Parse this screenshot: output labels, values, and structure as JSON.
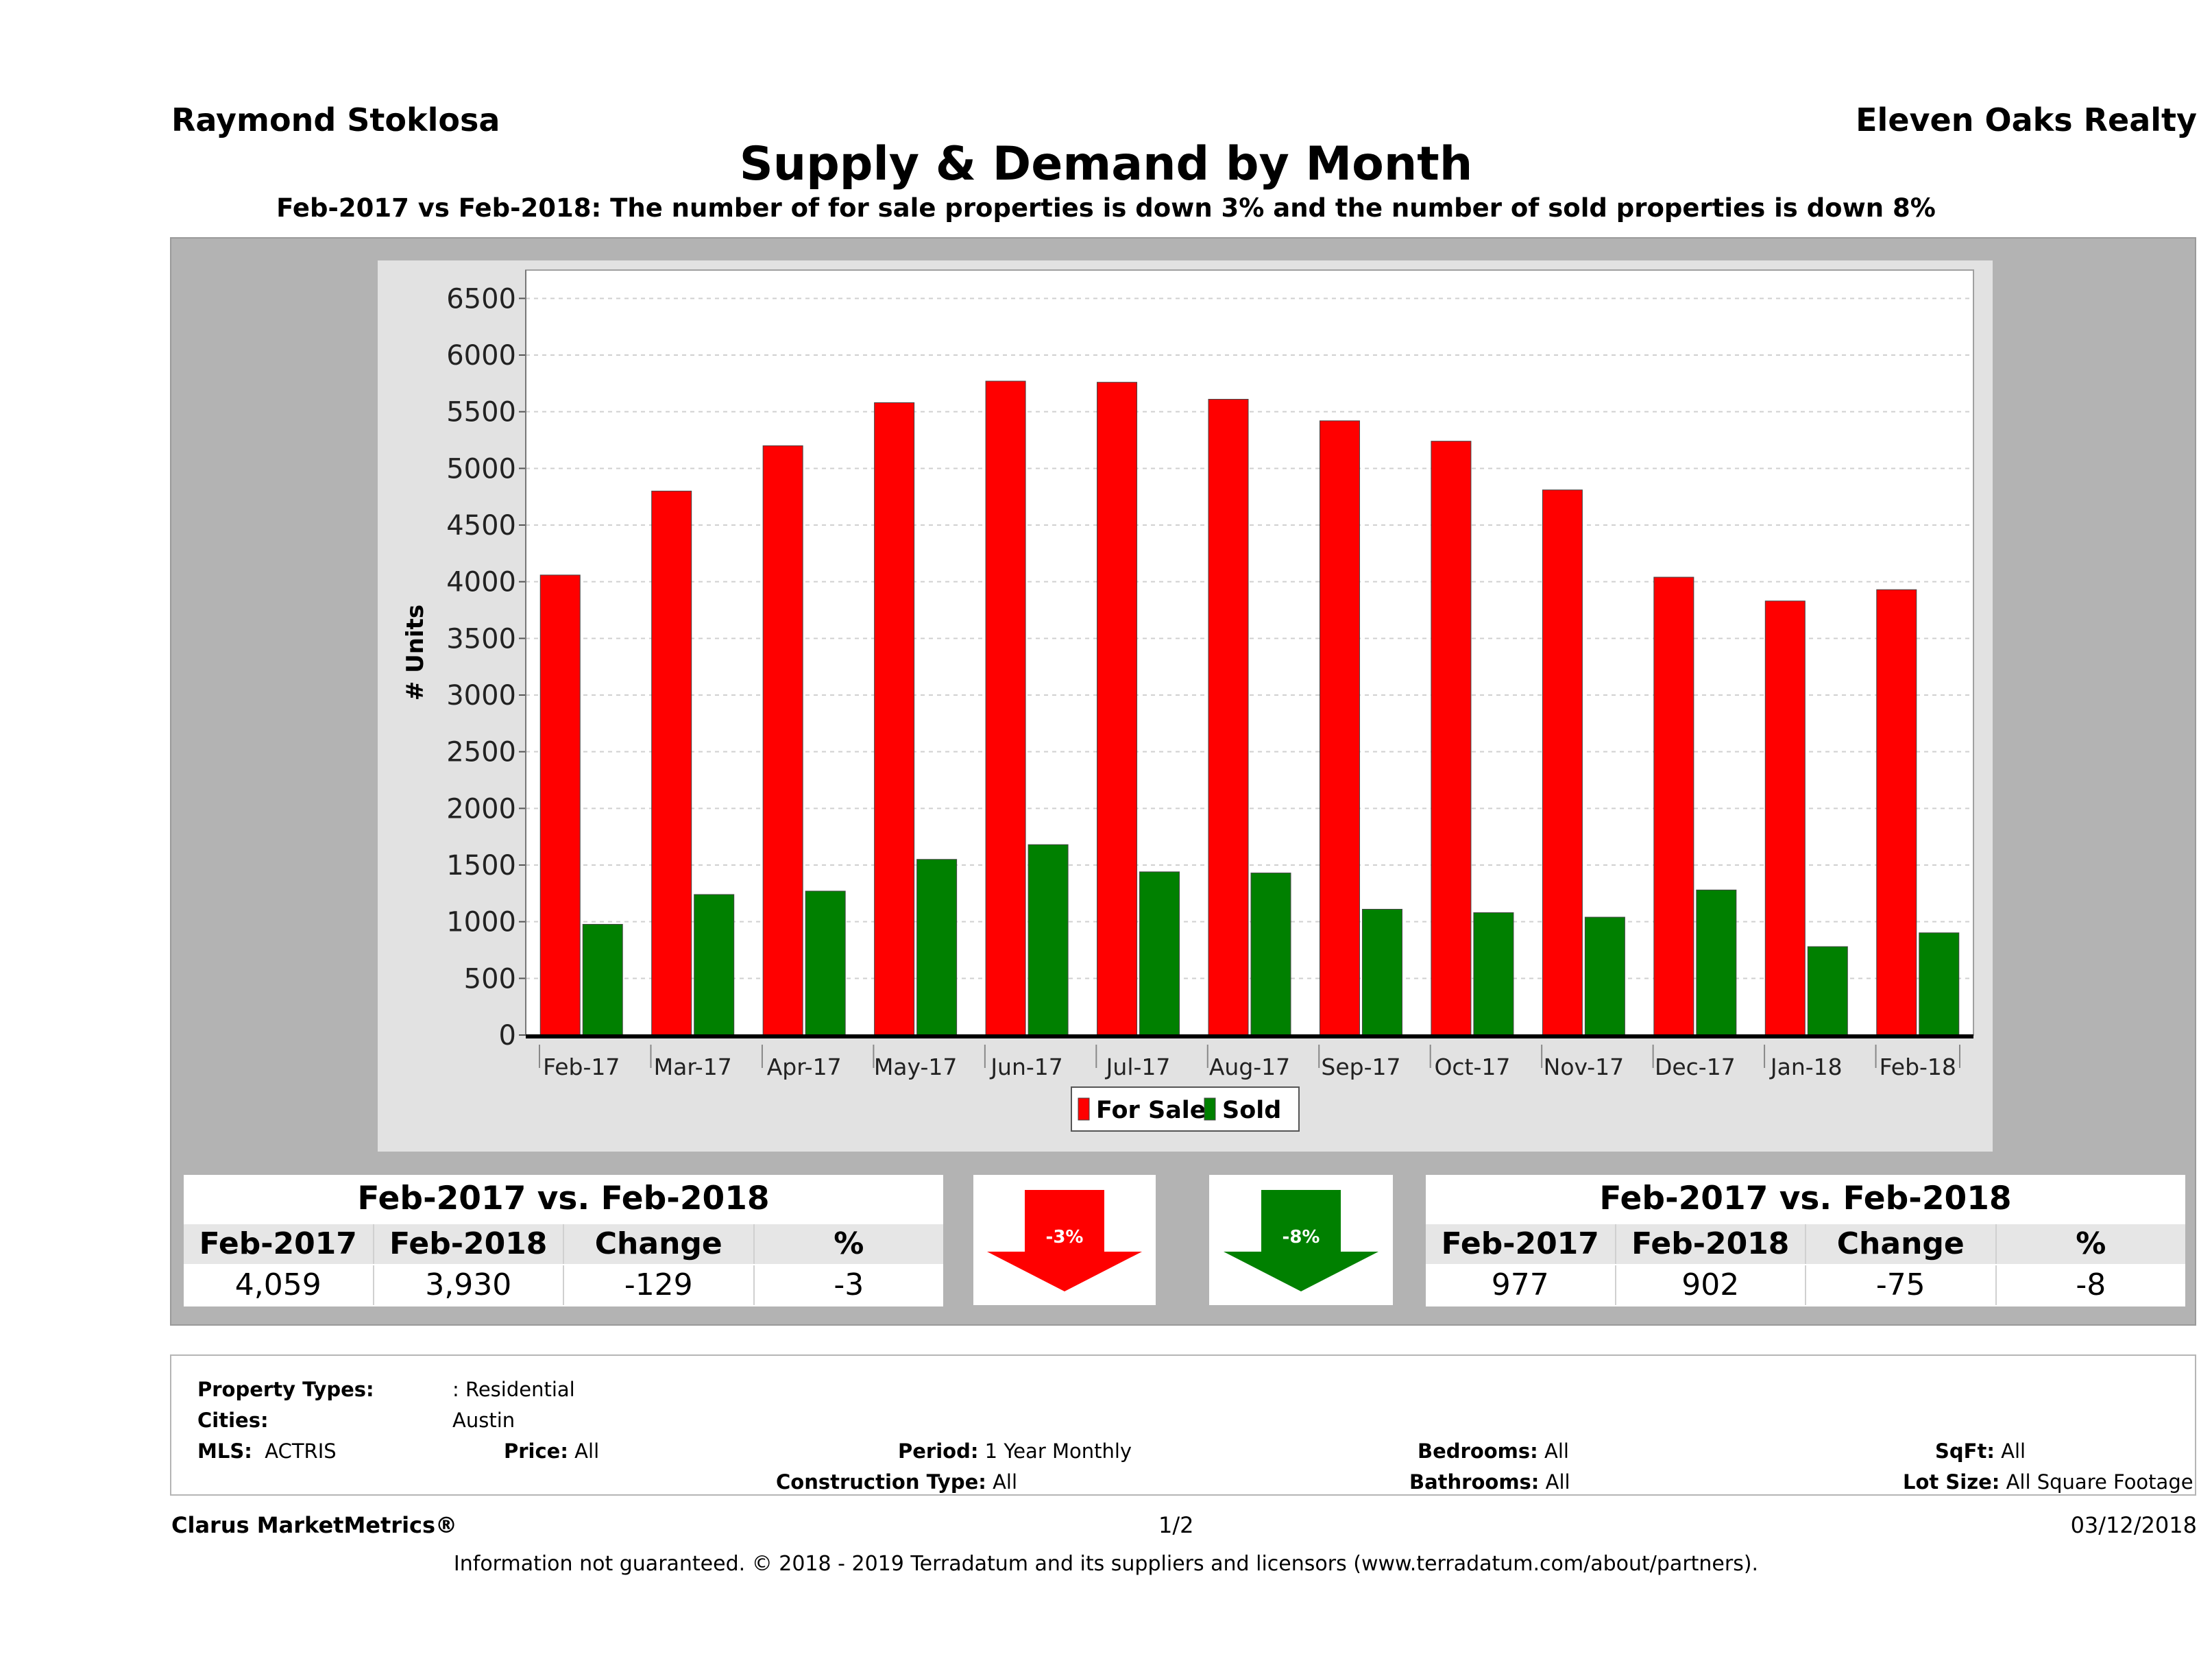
{
  "header": {
    "agent": "Raymond Stoklosa",
    "company": "Eleven Oaks Realty",
    "title": "Supply & Demand by Month",
    "subtitle": "Feb-2017 vs Feb-2018: The number of for sale properties is down 3% and the number of sold properties is down 8%"
  },
  "chart_data": {
    "type": "bar",
    "title": "",
    "xlabel": "",
    "ylabel": "# Units",
    "ylim": [
      0,
      6500
    ],
    "yticks": [
      0,
      500,
      1000,
      1500,
      2000,
      2500,
      3000,
      3500,
      4000,
      4500,
      5000,
      5500,
      6000,
      6500
    ],
    "grid": true,
    "legend_position": "bottom",
    "categories": [
      "Feb-17",
      "Mar-17",
      "Apr-17",
      "May-17",
      "Jun-17",
      "Jul-17",
      "Aug-17",
      "Sep-17",
      "Oct-17",
      "Nov-17",
      "Dec-17",
      "Jan-18",
      "Feb-18"
    ],
    "series": [
      {
        "name": "For Sale",
        "color": "#ff0000",
        "values": [
          4059,
          4800,
          5200,
          5580,
          5770,
          5760,
          5610,
          5420,
          5240,
          4810,
          4040,
          3830,
          3930
        ]
      },
      {
        "name": "Sold",
        "color": "#008000",
        "values": [
          977,
          1240,
          1270,
          1550,
          1680,
          1440,
          1430,
          1110,
          1080,
          1040,
          1280,
          780,
          902
        ]
      }
    ]
  },
  "for_sale_stats": {
    "heading": "Feb-2017 vs. Feb-2018",
    "columns": [
      "Feb-2017",
      "Feb-2018",
      "Change",
      "%"
    ],
    "values": [
      "4,059",
      "3,930",
      "-129",
      "-3"
    ],
    "arrow_label": "-3%",
    "arrow_color": "#ff0000"
  },
  "sold_stats": {
    "heading": "Feb-2017 vs. Feb-2018",
    "columns": [
      "Feb-2017",
      "Feb-2018",
      "Change",
      "%"
    ],
    "values": [
      "977",
      "902",
      "-75",
      "-8"
    ],
    "arrow_label": "-8%",
    "arrow_color": "#008000"
  },
  "filters": {
    "property_types_label": "Property Types:",
    "property_types_value": ": Residential",
    "cities_label": "Cities:",
    "cities_value": "Austin",
    "mls_label": "MLS:",
    "mls_value": "ACTRIS",
    "price_label": "Price:",
    "price_value": "All",
    "period_label": "Period:",
    "period_value": "1 Year Monthly",
    "construction_label": "Construction Type:",
    "construction_value": "All",
    "bedrooms_label": "Bedrooms:",
    "bedrooms_value": "All",
    "bathrooms_label": "Bathrooms:",
    "bathrooms_value": "All",
    "sqft_label": "SqFt:",
    "sqft_value": "All",
    "lotsize_label": "Lot Size:",
    "lotsize_value": "All Square Footage"
  },
  "footer": {
    "brand": "Clarus MarketMetrics®",
    "page": "1/2",
    "date": "03/12/2018",
    "disclaimer": "Information not guaranteed. © 2018 - 2019 Terradatum and its suppliers and licensors (www.terradatum.com/about/partners)."
  }
}
